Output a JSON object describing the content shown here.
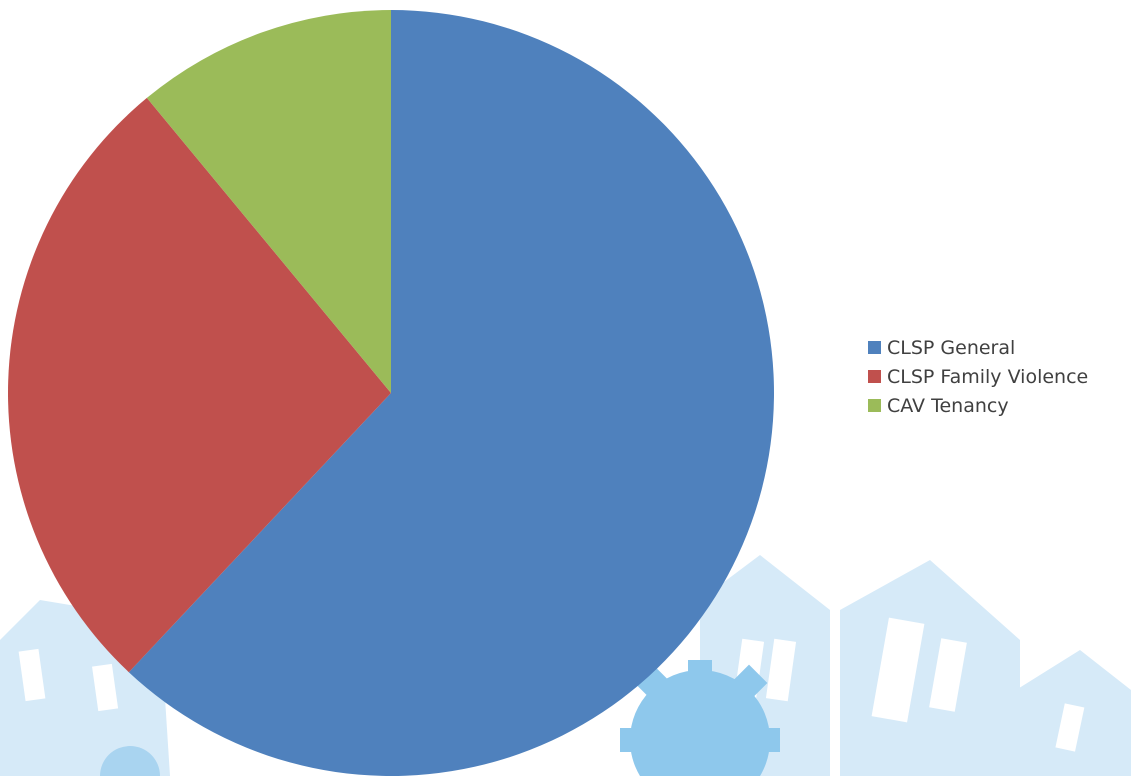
{
  "colors": {
    "background_art_light": "#d6eaf8",
    "background_art_mid": "#a9d4f0",
    "background_art_gear": "#8ec8ec",
    "window": "#ffffff"
  },
  "chart_data": {
    "type": "pie",
    "title": "",
    "start_angle_deg": 0,
    "direction": "clockwise",
    "slices": [
      {
        "name": "CLSP General",
        "value": 62,
        "color": "#4f81bd"
      },
      {
        "name": "CLSP Family Violence",
        "value": 27,
        "color": "#c0504d"
      },
      {
        "name": "CAV Tenancy",
        "value": 11,
        "color": "#9bbb59"
      }
    ],
    "legend_position": "right"
  }
}
